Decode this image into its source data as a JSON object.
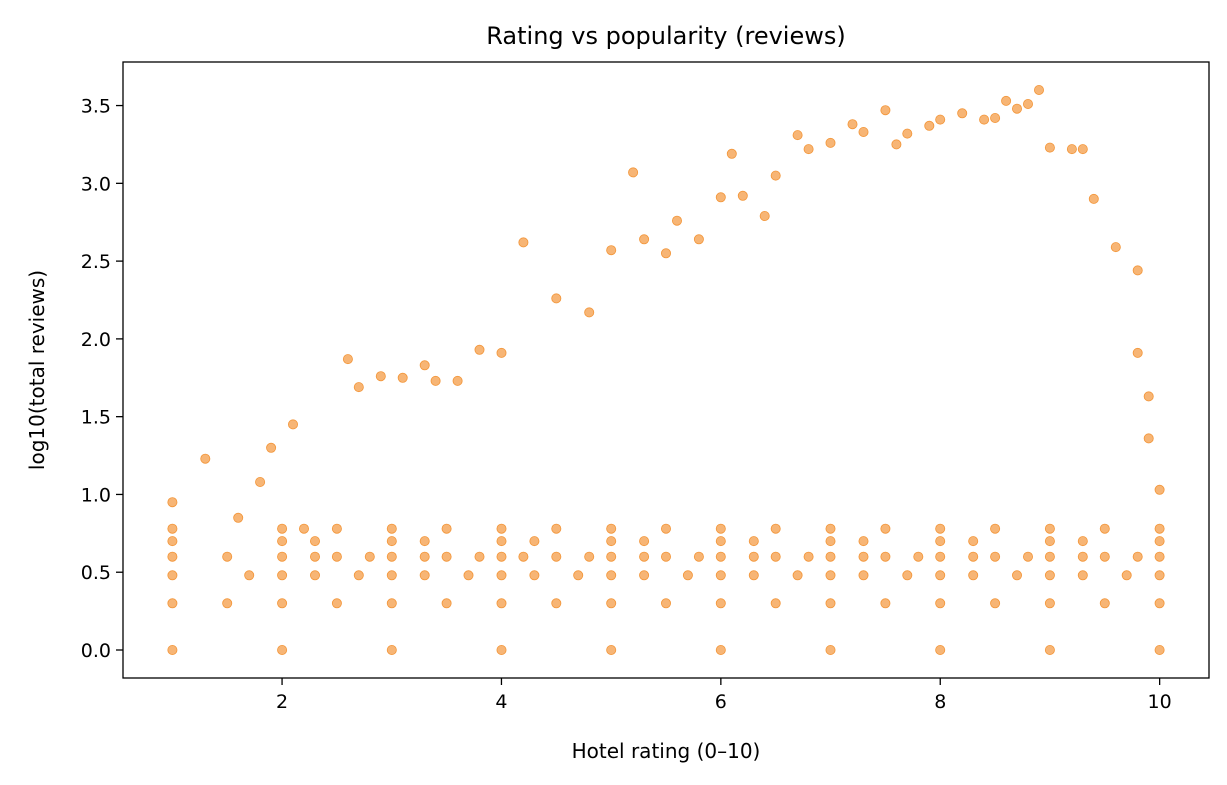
{
  "chart_data": {
    "type": "scatter",
    "title": "Rating vs popularity (reviews)",
    "xlabel": "Hotel rating (0–10)",
    "ylabel": "log10(total reviews)",
    "xlim": [
      0.55,
      10.45
    ],
    "ylim": [
      -0.18,
      3.78
    ],
    "x_ticks": [
      2,
      4,
      6,
      8,
      10
    ],
    "y_ticks": [
      0.0,
      0.5,
      1.0,
      1.5,
      2.0,
      2.5,
      3.0,
      3.5
    ],
    "grid": false,
    "legend": "none",
    "marker_color": "#f28e2b",
    "series": [
      {
        "points": [
          [
            1.0,
            0.0
          ],
          [
            2.0,
            0.0
          ],
          [
            3.0,
            0.0
          ],
          [
            4.0,
            0.0
          ],
          [
            5.0,
            0.0
          ],
          [
            6.0,
            0.0
          ],
          [
            7.0,
            0.0
          ],
          [
            8.0,
            0.0
          ],
          [
            9.0,
            0.0
          ],
          [
            10.0,
            0.0
          ],
          [
            1.0,
            0.3
          ],
          [
            1.5,
            0.3
          ],
          [
            2.0,
            0.3
          ],
          [
            2.5,
            0.3
          ],
          [
            3.0,
            0.3
          ],
          [
            3.5,
            0.3
          ],
          [
            4.0,
            0.3
          ],
          [
            4.5,
            0.3
          ],
          [
            5.0,
            0.3
          ],
          [
            5.5,
            0.3
          ],
          [
            6.0,
            0.3
          ],
          [
            6.5,
            0.3
          ],
          [
            7.0,
            0.3
          ],
          [
            7.5,
            0.3
          ],
          [
            8.0,
            0.3
          ],
          [
            8.5,
            0.3
          ],
          [
            9.0,
            0.3
          ],
          [
            9.5,
            0.3
          ],
          [
            10.0,
            0.3
          ],
          [
            1.0,
            0.48
          ],
          [
            1.7,
            0.48
          ],
          [
            2.0,
            0.48
          ],
          [
            2.3,
            0.48
          ],
          [
            2.7,
            0.48
          ],
          [
            3.0,
            0.48
          ],
          [
            3.3,
            0.48
          ],
          [
            3.7,
            0.48
          ],
          [
            4.0,
            0.48
          ],
          [
            4.3,
            0.48
          ],
          [
            4.7,
            0.48
          ],
          [
            5.0,
            0.48
          ],
          [
            5.3,
            0.48
          ],
          [
            5.7,
            0.48
          ],
          [
            6.0,
            0.48
          ],
          [
            6.3,
            0.48
          ],
          [
            6.7,
            0.48
          ],
          [
            7.0,
            0.48
          ],
          [
            7.3,
            0.48
          ],
          [
            7.7,
            0.48
          ],
          [
            8.0,
            0.48
          ],
          [
            8.3,
            0.48
          ],
          [
            8.7,
            0.48
          ],
          [
            9.0,
            0.48
          ],
          [
            9.3,
            0.48
          ],
          [
            9.7,
            0.48
          ],
          [
            10.0,
            0.48
          ],
          [
            1.0,
            0.6
          ],
          [
            1.5,
            0.6
          ],
          [
            2.0,
            0.6
          ],
          [
            2.3,
            0.6
          ],
          [
            2.5,
            0.6
          ],
          [
            2.8,
            0.6
          ],
          [
            3.0,
            0.6
          ],
          [
            3.3,
            0.6
          ],
          [
            3.5,
            0.6
          ],
          [
            3.8,
            0.6
          ],
          [
            4.0,
            0.6
          ],
          [
            4.2,
            0.6
          ],
          [
            4.5,
            0.6
          ],
          [
            4.8,
            0.6
          ],
          [
            5.0,
            0.6
          ],
          [
            5.3,
            0.6
          ],
          [
            5.5,
            0.6
          ],
          [
            5.8,
            0.6
          ],
          [
            6.0,
            0.6
          ],
          [
            6.3,
            0.6
          ],
          [
            6.5,
            0.6
          ],
          [
            6.8,
            0.6
          ],
          [
            7.0,
            0.6
          ],
          [
            7.3,
            0.6
          ],
          [
            7.5,
            0.6
          ],
          [
            7.8,
            0.6
          ],
          [
            8.0,
            0.6
          ],
          [
            8.3,
            0.6
          ],
          [
            8.5,
            0.6
          ],
          [
            8.8,
            0.6
          ],
          [
            9.0,
            0.6
          ],
          [
            9.3,
            0.6
          ],
          [
            9.5,
            0.6
          ],
          [
            9.8,
            0.6
          ],
          [
            10.0,
            0.6
          ],
          [
            1.0,
            0.7
          ],
          [
            2.0,
            0.7
          ],
          [
            2.3,
            0.7
          ],
          [
            3.0,
            0.7
          ],
          [
            3.3,
            0.7
          ],
          [
            4.0,
            0.7
          ],
          [
            4.3,
            0.7
          ],
          [
            5.0,
            0.7
          ],
          [
            5.3,
            0.7
          ],
          [
            6.0,
            0.7
          ],
          [
            6.3,
            0.7
          ],
          [
            7.0,
            0.7
          ],
          [
            7.3,
            0.7
          ],
          [
            8.0,
            0.7
          ],
          [
            8.3,
            0.7
          ],
          [
            9.0,
            0.7
          ],
          [
            9.3,
            0.7
          ],
          [
            10.0,
            0.7
          ],
          [
            1.0,
            0.78
          ],
          [
            2.0,
            0.78
          ],
          [
            2.2,
            0.78
          ],
          [
            2.5,
            0.78
          ],
          [
            3.0,
            0.78
          ],
          [
            3.5,
            0.78
          ],
          [
            4.0,
            0.78
          ],
          [
            4.5,
            0.78
          ],
          [
            5.0,
            0.78
          ],
          [
            5.5,
            0.78
          ],
          [
            6.0,
            0.78
          ],
          [
            6.5,
            0.78
          ],
          [
            7.0,
            0.78
          ],
          [
            7.5,
            0.78
          ],
          [
            8.0,
            0.78
          ],
          [
            8.5,
            0.78
          ],
          [
            9.0,
            0.78
          ],
          [
            9.5,
            0.78
          ],
          [
            10.0,
            0.78
          ],
          [
            1.0,
            0.95
          ],
          [
            1.3,
            1.23
          ],
          [
            1.6,
            0.85
          ],
          [
            1.8,
            1.08
          ],
          [
            1.9,
            1.3
          ],
          [
            2.1,
            1.45
          ],
          [
            2.6,
            1.87
          ],
          [
            2.7,
            1.69
          ],
          [
            2.9,
            1.76
          ],
          [
            3.1,
            1.75
          ],
          [
            3.3,
            1.83
          ],
          [
            3.4,
            1.73
          ],
          [
            3.6,
            1.73
          ],
          [
            3.8,
            1.93
          ],
          [
            4.0,
            1.91
          ],
          [
            4.2,
            2.62
          ],
          [
            4.5,
            2.26
          ],
          [
            4.8,
            2.17
          ],
          [
            5.0,
            2.57
          ],
          [
            5.2,
            3.07
          ],
          [
            5.3,
            2.64
          ],
          [
            5.5,
            2.55
          ],
          [
            5.6,
            2.76
          ],
          [
            5.8,
            2.64
          ],
          [
            6.0,
            2.91
          ],
          [
            6.1,
            3.19
          ],
          [
            6.2,
            2.92
          ],
          [
            6.4,
            2.79
          ],
          [
            6.5,
            3.05
          ],
          [
            6.7,
            3.31
          ],
          [
            6.8,
            3.22
          ],
          [
            7.0,
            3.26
          ],
          [
            7.2,
            3.38
          ],
          [
            7.3,
            3.33
          ],
          [
            7.5,
            3.47
          ],
          [
            7.6,
            3.25
          ],
          [
            7.7,
            3.32
          ],
          [
            7.9,
            3.37
          ],
          [
            8.0,
            3.41
          ],
          [
            8.2,
            3.45
          ],
          [
            8.4,
            3.41
          ],
          [
            8.5,
            3.42
          ],
          [
            8.6,
            3.53
          ],
          [
            8.7,
            3.48
          ],
          [
            8.8,
            3.51
          ],
          [
            8.9,
            3.6
          ],
          [
            9.0,
            3.23
          ],
          [
            9.2,
            3.22
          ],
          [
            9.3,
            3.22
          ],
          [
            9.4,
            2.9
          ],
          [
            9.6,
            2.59
          ],
          [
            9.8,
            2.44
          ],
          [
            9.8,
            1.91
          ],
          [
            9.9,
            1.63
          ],
          [
            10.0,
            1.03
          ],
          [
            9.9,
            1.36
          ]
        ]
      }
    ]
  }
}
